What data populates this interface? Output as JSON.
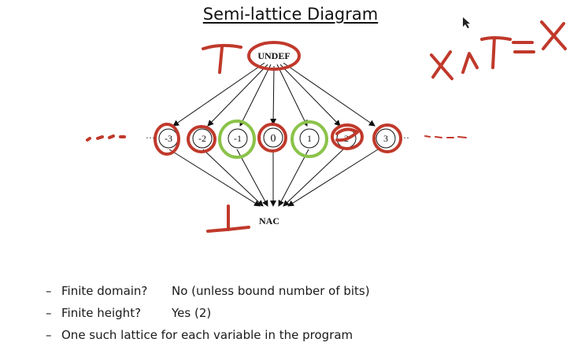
{
  "slide": {
    "title": "Semi-lattice Diagram"
  },
  "lattice": {
    "top": "UNDEF",
    "bottom": "NAC",
    "middle": [
      "-3",
      "-2",
      "-1",
      "0",
      "1",
      "2",
      "3"
    ],
    "ellipsis_left": "···",
    "ellipsis_right": "···"
  },
  "annotations": {
    "top_symbol": "T",
    "bottom_symbol": "⊥",
    "equation": "x∧T=x",
    "ink_red": "#c0392b",
    "ink_green": "#8bc34a"
  },
  "bullets": [
    {
      "dash": "–",
      "question": "Finite domain?",
      "answer": "No (unless bound number of bits)"
    },
    {
      "dash": "–",
      "question": "Finite height?",
      "answer": "Yes (2)"
    },
    {
      "dash": "–",
      "question": "One such lattice for each variable in the program",
      "answer": ""
    }
  ]
}
